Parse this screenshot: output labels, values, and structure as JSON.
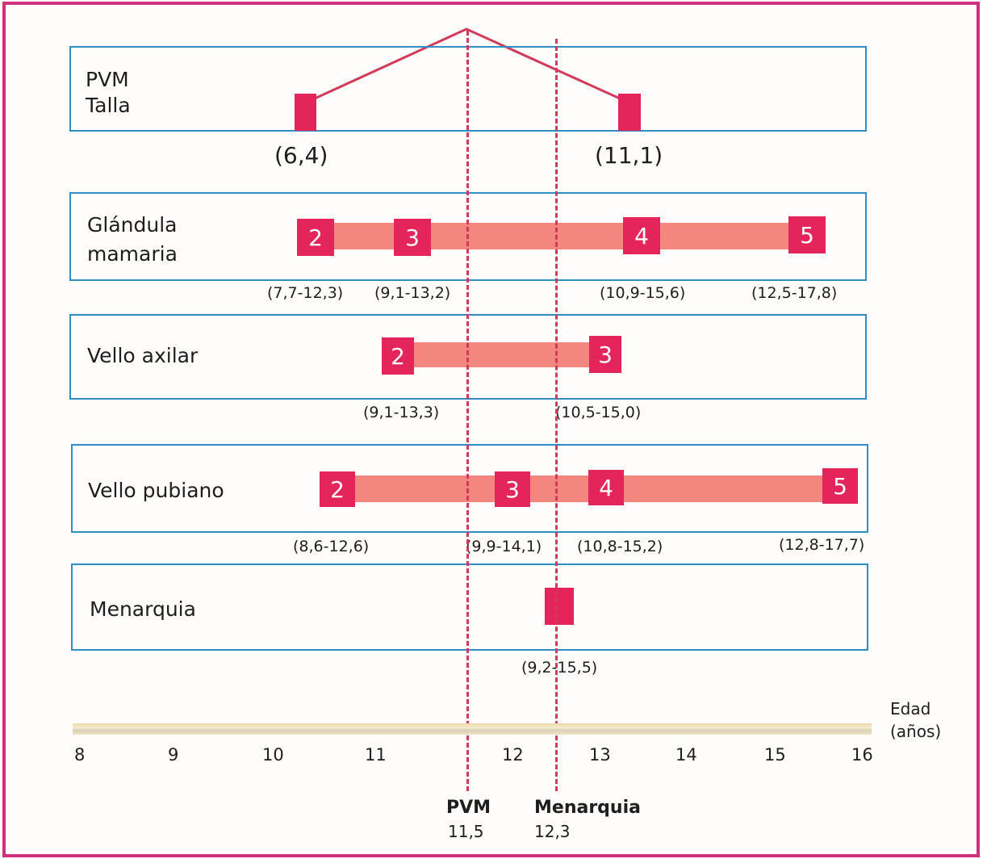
{
  "panels": {
    "pvm": {
      "label_line1": "PVM",
      "label_line2": "Talla",
      "range_left": "(6,4)",
      "range_right": "(11,1)"
    },
    "mamaria": {
      "label_line1": "Glándula",
      "label_line2": "mamaria",
      "stages": [
        "2",
        "3",
        "4",
        "5"
      ],
      "ranges": [
        "(7,7-12,3)",
        "(9,1-13,2)",
        "(10,9-15,6)",
        "(12,5-17,8)"
      ]
    },
    "axilar": {
      "label": "Vello axilar",
      "stages": [
        "2",
        "3"
      ],
      "ranges": [
        "(9,1-13,3)",
        "(10,5-15,0)"
      ]
    },
    "pubiano": {
      "label": "Vello pubiano",
      "stages": [
        "2",
        "3",
        "4",
        "5"
      ],
      "ranges": [
        "(8,6-12,6)",
        "(9,9-14,1)",
        "(10,8-15,2)",
        "(12,8-17,7)"
      ]
    },
    "menarquia": {
      "label": "Menarquia",
      "range": "(9,2-15,5)"
    }
  },
  "axis": {
    "title_line1": "Edad",
    "title_line2": "(años)",
    "ticks": [
      "8",
      "9",
      "10",
      "11",
      "12",
      "13",
      "14",
      "15",
      "16"
    ]
  },
  "markers": {
    "pvm": {
      "label": "PVM",
      "value": "11,5"
    },
    "menarquia": {
      "label": "Menarquia",
      "value": "12,3"
    }
  },
  "colors": {
    "frame": "#d0317b",
    "panel_border": "#2f8fc5",
    "stage_box": "#e4255c",
    "stage_band": "#f3867e",
    "marker_line": "#d33a5a"
  }
}
